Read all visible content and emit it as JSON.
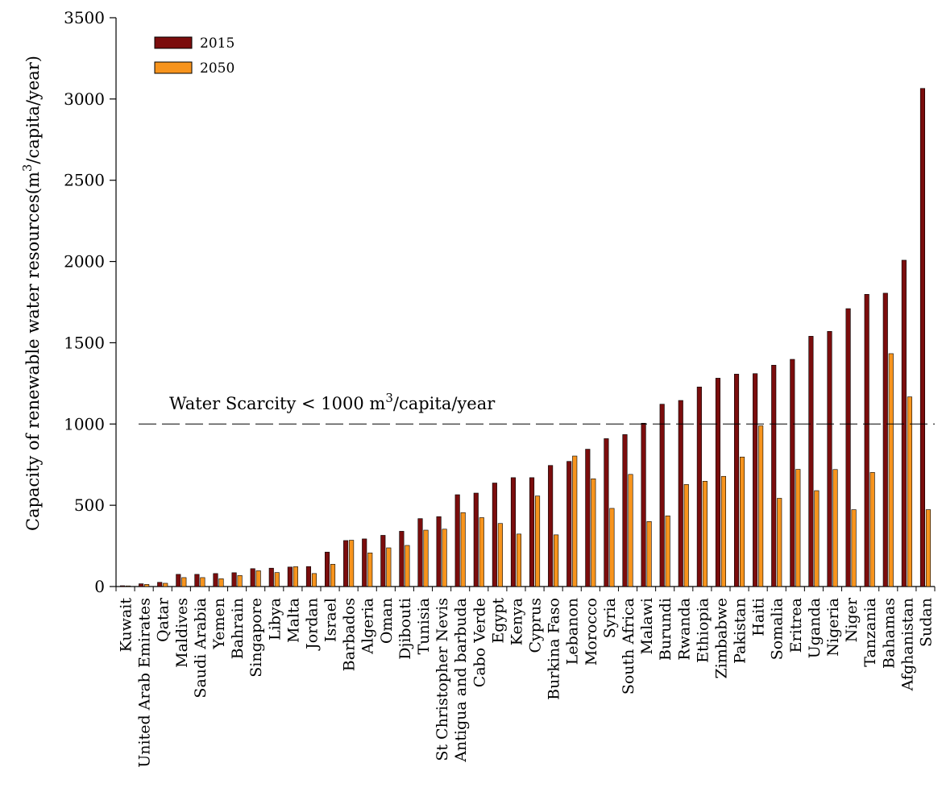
{
  "chart_data": {
    "type": "bar",
    "title": "",
    "xlabel": "",
    "ylabel": "Capacity of renewable water resources(m",
    "ylabel_sup": "3",
    "ylabel_tail": "/capita/year)",
    "ylim": [
      0,
      3500
    ],
    "yticks": [
      0,
      500,
      1000,
      1500,
      2000,
      2500,
      3000,
      3500
    ],
    "grid": false,
    "legend_position": "top-left",
    "categories": [
      "Kuwait",
      "United Arab Emirates",
      "Qatar",
      "Maldives",
      "Saudi Arabia",
      "Yemen",
      "Bahrain",
      "Singapore",
      "Libya",
      "Malta",
      "Jordan",
      "Israel",
      "Barbados",
      "Algeria",
      "Oman",
      "Djibouti",
      "Tunisia",
      "St Christopher Nevis",
      "Antigua and barbuda",
      "Cabo Verde",
      "Egypt",
      "Kenya",
      "Cyprus",
      "Burkina Faso",
      "Lebanon",
      "Morocco",
      "Syria",
      "South Africa",
      "Malawi",
      "Burundi",
      "Rwanda",
      "Ethiopia",
      "Zimbabwe",
      "Pakistan",
      "Haiti",
      "Somalia",
      "Eritrea",
      "Uganda",
      "Nigeria",
      "Niger",
      "Tanzania",
      "Bahamas",
      "Afghanistan",
      "Sudan"
    ],
    "series": [
      {
        "name": "2015",
        "color": "#7b0d0d",
        "values": [
          5,
          17,
          26,
          75,
          75,
          80,
          85,
          110,
          113,
          120,
          123,
          212,
          283,
          293,
          315,
          340,
          418,
          430,
          565,
          575,
          637,
          670,
          670,
          745,
          770,
          845,
          910,
          935,
          1005,
          1122,
          1145,
          1228,
          1282,
          1307,
          1310,
          1362,
          1398,
          1540,
          1570,
          1710,
          1798,
          1805,
          2008,
          3065
        ]
      },
      {
        "name": "2050",
        "color": "#f7941d",
        "values": [
          3,
          13,
          20,
          55,
          55,
          48,
          68,
          97,
          86,
          122,
          80,
          137,
          285,
          207,
          238,
          253,
          347,
          353,
          455,
          424,
          388,
          323,
          557,
          318,
          803,
          663,
          481,
          690,
          400,
          435,
          628,
          648,
          678,
          797,
          989,
          543,
          721,
          590,
          720,
          473,
          702,
          1433,
          1167,
          473
        ]
      }
    ],
    "reference_line": {
      "value": 1000,
      "label_prefix": "Water Scarcity < 1000 m",
      "label_sup": "3",
      "label_suffix": "/capita/year"
    }
  }
}
